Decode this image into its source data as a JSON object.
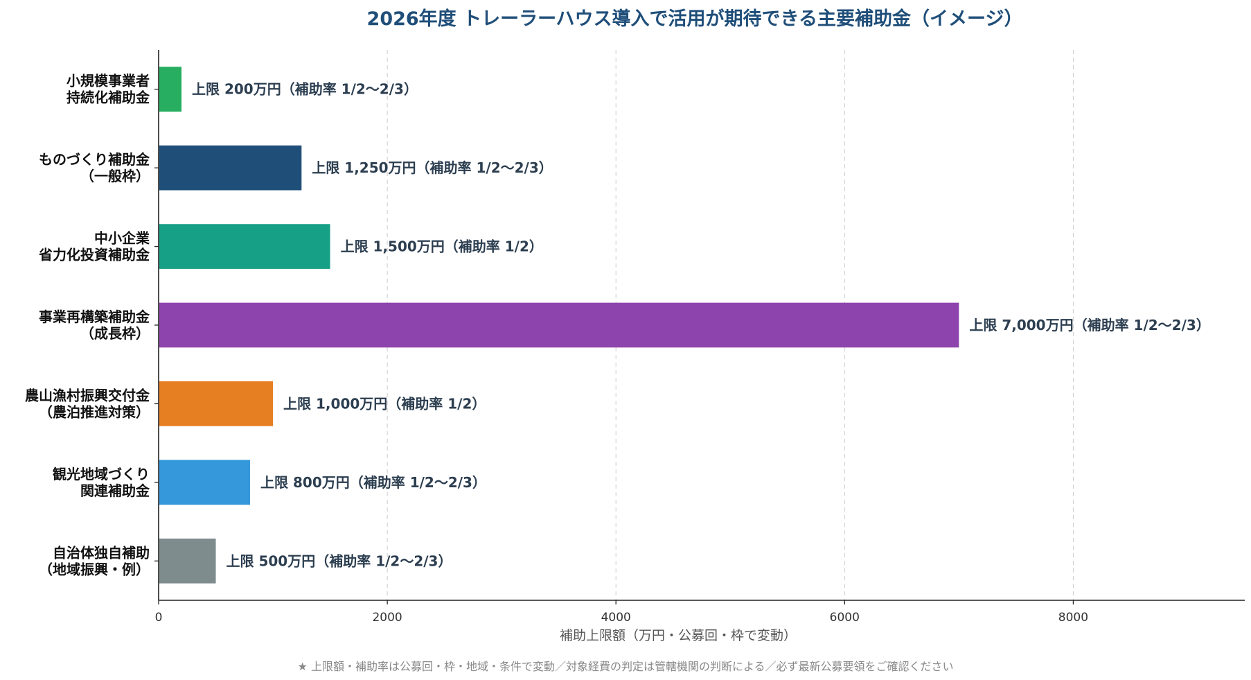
{
  "chart_data": {
    "type": "bar",
    "orientation": "horizontal",
    "title": "2026年度 トレーラーハウス導入で活用が期待できる主要補助金（イメージ）",
    "xlabel": "補助上限額（万円・公募回・枠で変動）",
    "xlim": [
      0,
      9500
    ],
    "xticks": [
      0,
      2000,
      4000,
      6000,
      8000
    ],
    "grid": "vertical-dashed",
    "categories": [
      [
        "小規模事業者",
        "持続化補助金"
      ],
      [
        "ものづくり補助金",
        "（一般枠）"
      ],
      [
        "中小企業",
        "省力化投資補助金"
      ],
      [
        "事業再構築補助金",
        "（成長枠）"
      ],
      [
        "農山漁村振興交付金",
        "（農泊推進対策）"
      ],
      [
        "観光地域づくり",
        "関連補助金"
      ],
      [
        "自治体独自補助",
        "（地域振興・例）"
      ]
    ],
    "values": [
      200,
      1250,
      1500,
      7000,
      1000,
      800,
      500
    ],
    "data_labels": [
      "上限 200万円（補助率 1/2〜2/3）",
      "上限 1,250万円（補助率 1/2〜2/3）",
      "上限 1,500万円（補助率 1/2）",
      "上限 7,000万円（補助率 1/2〜2/3）",
      "上限 1,000万円（補助率 1/2）",
      "上限 800万円（補助率 1/2〜2/3）",
      "上限 500万円（補助率 1/2〜2/3）"
    ],
    "colors": [
      "#27ae60",
      "#1f4e79",
      "#16a085",
      "#8e44ad",
      "#e67e22",
      "#3498db",
      "#7f8c8d"
    ],
    "footnote": "★ 上限額・補助率は公募回・枠・地域・条件で変動／対象経費の判定は管轄機関の判断による／必ず最新公募要領をご確認ください"
  }
}
